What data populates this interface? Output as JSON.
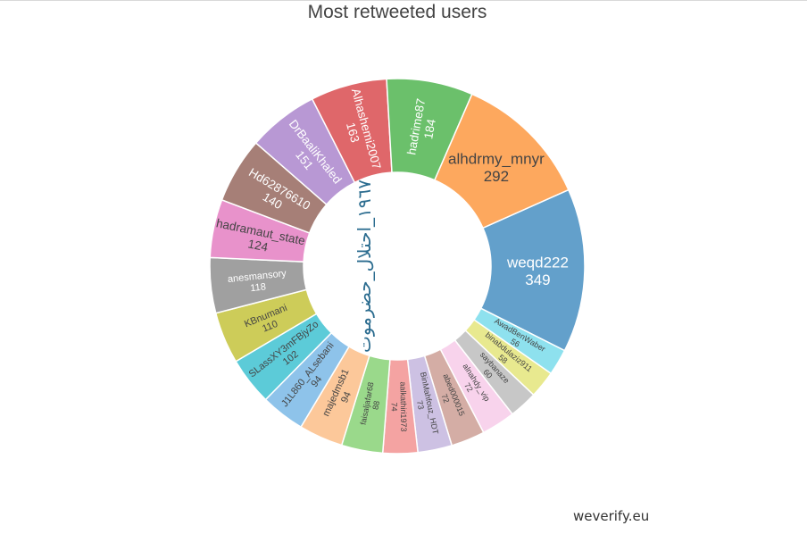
{
  "chart_data": {
    "type": "pie",
    "title": "Most retweeted users",
    "hole": 0.5,
    "series": [
      {
        "label": "weqd222",
        "value": 349,
        "color": "#63a0cb"
      },
      {
        "label": "AwadBenWaber",
        "value": 56,
        "color": "#8ee1ee"
      },
      {
        "label": "binabdulaziz911",
        "value": 58,
        "color": "#e8e98f"
      },
      {
        "label": "saybanaze",
        "value": 60,
        "color": "#c7c7c7"
      },
      {
        "label": "alnahdy_vip",
        "value": 72,
        "color": "#f8d3ec"
      },
      {
        "label": "abed000015",
        "value": 72,
        "color": "#d4ada5"
      },
      {
        "label": "BinMahfouz_HDT",
        "value": 73,
        "color": "#cdc1e3"
      },
      {
        "label": "aalkathiri1973",
        "value": 74,
        "color": "#f4a3a2"
      },
      {
        "label": "faisaljafar68",
        "value": 88,
        "color": "#9ad98b"
      },
      {
        "label": "majedmsb1",
        "value": 94,
        "color": "#fcc89a"
      },
      {
        "label": "J1L860_ALsebani",
        "value": 94,
        "color": "#8ec3ea"
      },
      {
        "label": "SLassXY3mFBjyZo",
        "value": 102,
        "color": "#5ccbd8"
      },
      {
        "label": "KBnumani",
        "value": 110,
        "color": "#cdcc59"
      },
      {
        "label": "anesmansory",
        "value": 118,
        "color": "#a0a0a0"
      },
      {
        "label": "hadramaut_state",
        "value": 124,
        "color": "#e892cb"
      },
      {
        "label": "Hd62876610",
        "value": 140,
        "color": "#a67f77"
      },
      {
        "label": "DrBaaliKhaled",
        "value": 151,
        "color": "#b898d4"
      },
      {
        "label": "Alhashemi2007",
        "value": 163,
        "color": "#df676a"
      },
      {
        "label": "hadrime87",
        "value": 184,
        "color": "#6bc06b"
      },
      {
        "label": "alhdrmy_mnyr",
        "value": 292,
        "color": "#fda85e"
      }
    ],
    "center_label": "١٩٦٧_احتلال_حضرموت"
  },
  "footer": {
    "credit": "weverify.eu"
  }
}
